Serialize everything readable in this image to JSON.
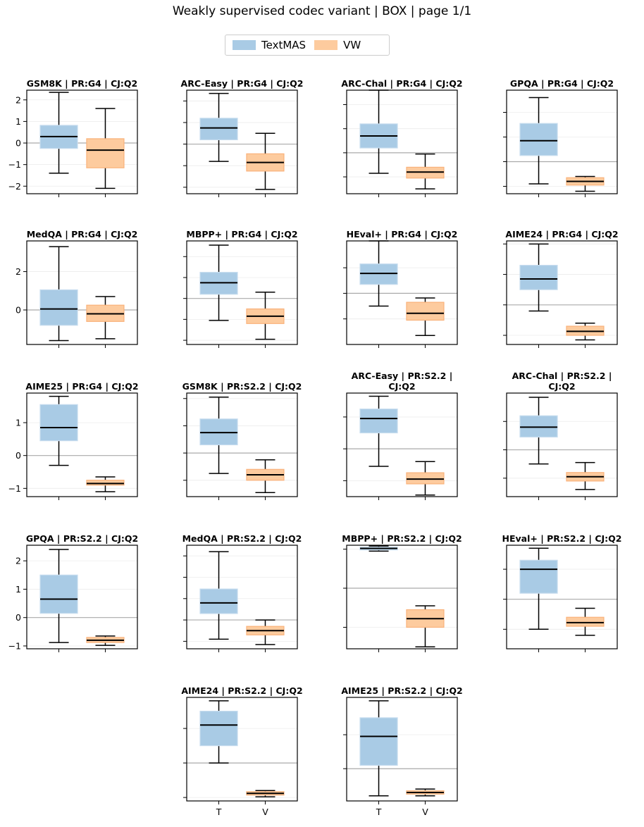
{
  "figure_title": "Weakly supervised codec variant | BOX | page 1/1",
  "legend": [
    {
      "label": "TextMAS",
      "color": "#a9cbe5"
    },
    {
      "label": "VW",
      "color": "#fdcb9e"
    }
  ],
  "colors": {
    "textmas_fill": "#a9cbe5",
    "textmas_edge": "#c6dcee",
    "vw_fill": "#fdcb9e",
    "vw_edge": "#f9b27b",
    "median": "#000000",
    "zero_line": "#aaaaaa",
    "grid": "#ececec"
  },
  "x_tick_labels": [
    "T",
    "V"
  ],
  "chart_data": [
    {
      "type": "box",
      "title": "GSM8K | PR:G4 | CJ:Q2",
      "ylim": [
        -2.35,
        2.45
      ],
      "yticks": [
        -2,
        -1,
        0,
        1,
        2
      ],
      "show_tick_labels": true,
      "boxes": [
        {
          "name": "TextMAS",
          "min": -1.4,
          "q1": -0.25,
          "median": 0.3,
          "q3": 0.82,
          "max": 2.35
        },
        {
          "name": "VW",
          "min": -2.1,
          "q1": -1.15,
          "median": -0.33,
          "q3": 0.2,
          "max": 1.6
        }
      ]
    },
    {
      "type": "box",
      "title": "ARC-Easy | PR:G4 | CJ:Q2",
      "ylim": [
        -2.3,
        2.5
      ],
      "yticks": [
        -2,
        -1,
        0,
        1,
        2
      ],
      "show_tick_labels": false,
      "boxes": [
        {
          "name": "TextMAS",
          "min": -0.8,
          "q1": 0.2,
          "median": 0.75,
          "q3": 1.2,
          "max": 2.35
        },
        {
          "name": "VW",
          "min": -2.1,
          "q1": -1.25,
          "median": -0.85,
          "q3": -0.45,
          "max": 0.5
        }
      ]
    },
    {
      "type": "box",
      "title": "ARC-Chal | PR:G4 | CJ:Q2",
      "ylim": [
        -1.7,
        2.6
      ],
      "yticks": [
        -1,
        0,
        1,
        2
      ],
      "show_tick_labels": false,
      "boxes": [
        {
          "name": "TextMAS",
          "min": -0.85,
          "q1": 0.2,
          "median": 0.7,
          "q3": 1.2,
          "max": 2.6
        },
        {
          "name": "VW",
          "min": -1.5,
          "q1": -1.05,
          "median": -0.8,
          "q3": -0.6,
          "max": -0.05
        }
      ]
    },
    {
      "type": "box",
      "title": "GPQA | PR:G4 | CJ:Q2",
      "ylim": [
        -1.3,
        2.9
      ],
      "yticks": [
        -1,
        0,
        1,
        2
      ],
      "show_tick_labels": false,
      "boxes": [
        {
          "name": "TextMAS",
          "min": -0.9,
          "q1": 0.25,
          "median": 0.85,
          "q3": 1.55,
          "max": 2.6
        },
        {
          "name": "VW",
          "min": -1.2,
          "q1": -0.95,
          "median": -0.8,
          "q3": -0.65,
          "max": -0.6
        }
      ]
    },
    {
      "type": "box",
      "title": "MedQA | PR:G4 | CJ:Q2",
      "ylim": [
        -1.8,
        3.6
      ],
      "yticks": [
        0,
        2
      ],
      "show_tick_labels": true,
      "boxes": [
        {
          "name": "TextMAS",
          "min": -1.6,
          "q1": -0.8,
          "median": 0.05,
          "q3": 1.05,
          "max": 3.3
        },
        {
          "name": "VW",
          "min": -1.5,
          "q1": -0.6,
          "median": -0.2,
          "q3": 0.25,
          "max": 0.7
        }
      ]
    },
    {
      "type": "box",
      "title": "MBPP+ | PR:G4 | CJ:Q2",
      "ylim": [
        -2.2,
        2.75
      ],
      "yticks": [
        -2,
        -1,
        0,
        1,
        2
      ],
      "show_tick_labels": false,
      "boxes": [
        {
          "name": "TextMAS",
          "min": -1.05,
          "q1": 0.2,
          "median": 0.75,
          "q3": 1.25,
          "max": 2.55
        },
        {
          "name": "VW",
          "min": -1.95,
          "q1": -1.2,
          "median": -0.85,
          "q3": -0.5,
          "max": 0.3
        }
      ]
    },
    {
      "type": "box",
      "title": "HEval+ | PR:G4 | CJ:Q2",
      "ylim": [
        -2.0,
        2.05
      ],
      "yticks": [
        -1,
        0,
        1
      ],
      "show_tick_labels": false,
      "boxes": [
        {
          "name": "TextMAS",
          "min": -0.5,
          "q1": 0.35,
          "median": 0.78,
          "q3": 1.15,
          "max": 2.05
        },
        {
          "name": "VW",
          "min": -1.65,
          "q1": -1.05,
          "median": -0.78,
          "q3": -0.35,
          "max": -0.18
        }
      ]
    },
    {
      "type": "box",
      "title": "AIME24 | PR:G4 | CJ:Q2",
      "ylim": [
        -1.3,
        2.1
      ],
      "yticks": [
        -1,
        0,
        1,
        2
      ],
      "show_tick_labels": false,
      "boxes": [
        {
          "name": "TextMAS",
          "min": -0.2,
          "q1": 0.5,
          "median": 0.85,
          "q3": 1.3,
          "max": 2.0
        },
        {
          "name": "VW",
          "min": -1.15,
          "q1": -1.0,
          "median": -0.87,
          "q3": -0.7,
          "max": -0.6
        }
      ]
    },
    {
      "type": "box",
      "title": "AIME25 | PR:G4 | CJ:Q2",
      "ylim": [
        -1.25,
        1.9
      ],
      "yticks": [
        -1,
        0,
        1
      ],
      "show_tick_labels": true,
      "boxes": [
        {
          "name": "TextMAS",
          "min": -0.3,
          "q1": 0.45,
          "median": 0.85,
          "q3": 1.55,
          "max": 1.8
        },
        {
          "name": "VW",
          "min": -1.1,
          "q1": -0.9,
          "median": -0.85,
          "q3": -0.75,
          "max": -0.65
        }
      ]
    },
    {
      "type": "box",
      "title": "GSM8K | PR:S2.2 | CJ:Q2",
      "ylim": [
        -1.6,
        2.2
      ],
      "yticks": [
        -1,
        0,
        1,
        2
      ],
      "show_tick_labels": false,
      "boxes": [
        {
          "name": "TextMAS",
          "min": -0.75,
          "q1": 0.3,
          "median": 0.75,
          "q3": 1.25,
          "max": 2.05
        },
        {
          "name": "VW",
          "min": -1.45,
          "q1": -1.0,
          "median": -0.8,
          "q3": -0.6,
          "max": -0.25
        }
      ]
    },
    {
      "type": "box",
      "title": "ARC-Easy | PR:S2.2 |\nCJ:Q2",
      "ylim": [
        -1.5,
        1.75
      ],
      "yticks": [
        -1,
        0,
        1
      ],
      "show_tick_labels": false,
      "boxes": [
        {
          "name": "TextMAS",
          "min": -0.55,
          "q1": 0.5,
          "median": 0.95,
          "q3": 1.25,
          "max": 1.65
        },
        {
          "name": "VW",
          "min": -1.45,
          "q1": -1.1,
          "median": -0.95,
          "q3": -0.75,
          "max": -0.4
        }
      ]
    },
    {
      "type": "box",
      "title": "ARC-Chal | PR:S2.2 |\nCJ:Q2",
      "ylim": [
        -1.65,
        2.0
      ],
      "yticks": [
        -1,
        0,
        1
      ],
      "show_tick_labels": false,
      "boxes": [
        {
          "name": "TextMAS",
          "min": -0.5,
          "q1": 0.45,
          "median": 0.8,
          "q3": 1.2,
          "max": 1.85
        },
        {
          "name": "VW",
          "min": -1.4,
          "q1": -1.1,
          "median": -0.95,
          "q3": -0.8,
          "max": -0.45
        }
      ]
    },
    {
      "type": "box",
      "title": "GPQA | PR:S2.2 | CJ:Q2",
      "ylim": [
        -1.1,
        2.55
      ],
      "yticks": [
        -1,
        0,
        1,
        2
      ],
      "show_tick_labels": true,
      "boxes": [
        {
          "name": "TextMAS",
          "min": -0.88,
          "q1": 0.15,
          "median": 0.65,
          "q3": 1.5,
          "max": 2.4
        },
        {
          "name": "VW",
          "min": -0.98,
          "q1": -0.88,
          "median": -0.8,
          "q3": -0.7,
          "max": -0.65
        }
      ]
    },
    {
      "type": "box",
      "title": "MedQA | PR:S2.2 | CJ:Q2",
      "ylim": [
        -1.35,
        3.5
      ],
      "yticks": [
        -1,
        0,
        1,
        2,
        3
      ],
      "show_tick_labels": false,
      "boxes": [
        {
          "name": "TextMAS",
          "min": -0.9,
          "q1": 0.3,
          "median": 0.8,
          "q3": 1.45,
          "max": 3.2
        },
        {
          "name": "VW",
          "min": -1.15,
          "q1": -0.7,
          "median": -0.5,
          "q3": -0.3,
          "max": 0.0
        }
      ]
    },
    {
      "type": "box",
      "title": "MBPP+ | PR:S2.2 | CJ:Q2",
      "ylim": [
        -1.55,
        1.1
      ],
      "yticks": [
        -1,
        0,
        1
      ],
      "show_tick_labels": false,
      "boxes": [
        {
          "name": "TextMAS",
          "min": 0.95,
          "q1": 0.98,
          "median": 1.02,
          "q3": 1.05,
          "max": 1.08
        },
        {
          "name": "VW",
          "min": -1.5,
          "q1": -1.0,
          "median": -0.78,
          "q3": -0.55,
          "max": -0.45
        }
      ]
    },
    {
      "type": "box",
      "title": "HEval+ | PR:S2.2 | CJ:Q2",
      "ylim": [
        -1.65,
        1.8
      ],
      "yticks": [
        -1,
        0,
        1
      ],
      "show_tick_labels": false,
      "boxes": [
        {
          "name": "TextMAS",
          "min": -1.0,
          "q1": 0.2,
          "median": 1.0,
          "q3": 1.3,
          "max": 1.7
        },
        {
          "name": "VW",
          "min": -1.2,
          "q1": -0.9,
          "median": -0.78,
          "q3": -0.6,
          "max": -0.3
        }
      ]
    },
    {
      "type": "box",
      "title": "AIME24 | PR:S2.2 | CJ:Q2",
      "ylim": [
        -1.1,
        1.9
      ],
      "yticks": [
        -1,
        0,
        1
      ],
      "show_tick_labels": false,
      "boxes": [
        {
          "name": "TextMAS",
          "min": 0.0,
          "q1": 0.5,
          "median": 1.1,
          "q3": 1.5,
          "max": 1.8
        },
        {
          "name": "VW",
          "min": -0.98,
          "q1": -0.93,
          "median": -0.88,
          "q3": -0.83,
          "max": -0.8
        }
      ]
    },
    {
      "type": "box",
      "title": "AIME25 | PR:S2.2 | CJ:Q2",
      "ylim": [
        -0.95,
        2.1
      ],
      "yticks": [
        -1,
        0,
        1
      ],
      "show_tick_labels": false,
      "boxes": [
        {
          "name": "TextMAS",
          "min": -0.8,
          "q1": 0.1,
          "median": 0.95,
          "q3": 1.5,
          "max": 2.0
        },
        {
          "name": "VW",
          "min": -0.8,
          "q1": -0.75,
          "median": -0.7,
          "q3": -0.65,
          "max": -0.6
        }
      ]
    }
  ]
}
